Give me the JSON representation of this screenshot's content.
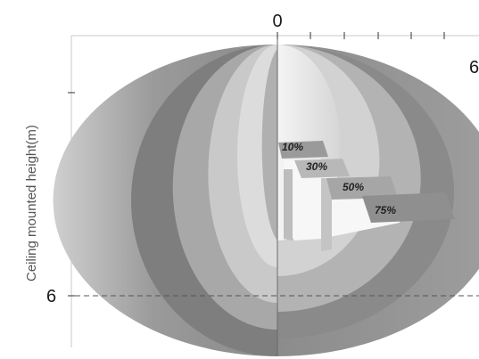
{
  "axes": {
    "top_zero": "0",
    "top_end": "6",
    "left_tick_label": "6",
    "y_label": "Ceiling mounted height(m)"
  },
  "zones": [
    {
      "label": "10%"
    },
    {
      "label": "30%"
    },
    {
      "label": "50%"
    },
    {
      "label": "75%"
    }
  ],
  "colors": {
    "outer_shell": "#8f8f8f",
    "band_dark": "#7a7a7a",
    "band_mid": "#a9a9a9",
    "band_light": "#c8c8c8",
    "core_light": "#e6e6e6",
    "dashed_line": "#555555"
  }
}
